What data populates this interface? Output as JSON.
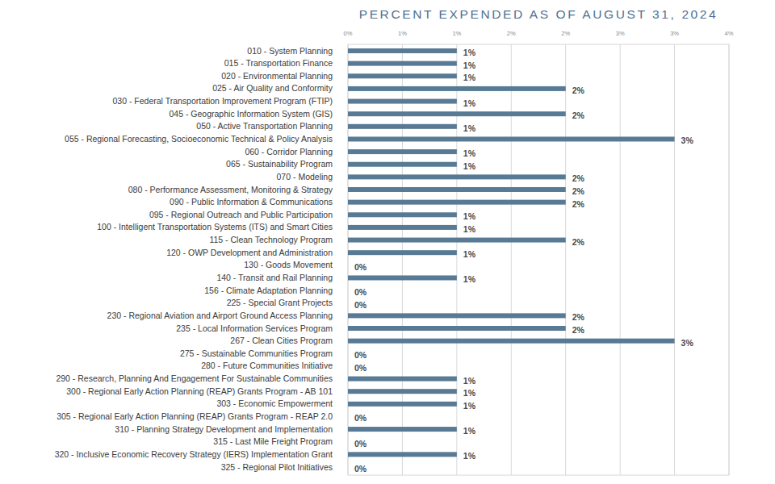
{
  "chart_data": {
    "type": "bar",
    "orientation": "horizontal",
    "title": "PERCENT EXPENDED AS OF AUGUST 31, 2024",
    "categories": [
      "010 - System Planning",
      "015 - Transportation Finance",
      "020 - Environmental Planning",
      "025 - Air Quality and Conformity",
      "030 - Federal Transportation Improvement Program (FTIP)",
      "045 - Geographic Information System (GIS)",
      "050 - Active Transportation Planning",
      "055 - Regional Forecasting, Socioeconomic Technical & Policy Analysis",
      "060 - Corridor Planning",
      "065 - Sustainability Program",
      "070 - Modeling",
      "080 - Performance Assessment, Monitoring & Strategy",
      "090 - Public Information & Communications",
      "095 - Regional Outreach and Public Participation",
      "100 - Intelligent Transportation Systems (ITS) and Smart Cities",
      "115 - Clean Technology Program",
      "120 - OWP Development and Administration",
      "130 - Goods Movement",
      "140 - Transit and Rail Planning",
      "156 - Climate Adaptation Planning",
      "225 - Special Grant Projects",
      "230 - Regional Aviation and Airport Ground Access Planning",
      "235 - Local Information Services Program",
      "267 - Clean Cities Program",
      "275 - Sustainable Communities Program",
      "280 - Future Communities Initiative",
      "290 - Research, Planning And Engagement For Sustainable Communities",
      "300 - Regional Early Action Planning (REAP) Grants Program - AB 101",
      "303 - Economic Empowerment",
      "305 - Regional Early Action Planning (REAP) Grants Program - REAP 2.0",
      "310 - Planning Strategy Development and Implementation",
      "315 - Last Mile Freight Program",
      "320 - Inclusive Economic Recovery Strategy (IERS) Implementation Grant",
      "325 - Regional Pilot Initiatives"
    ],
    "values": [
      1,
      1,
      1,
      2,
      1,
      2,
      1,
      3,
      1,
      1,
      2,
      2,
      2,
      1,
      1,
      2,
      1,
      0,
      1,
      0,
      0,
      2,
      2,
      3,
      0,
      0,
      1,
      1,
      1,
      0,
      1,
      0,
      1,
      0
    ],
    "value_labels": [
      "1%",
      "1%",
      "1%",
      "2%",
      "1%",
      "2%",
      "1%",
      "3%",
      "1%",
      "1%",
      "2%",
      "2%",
      "2%",
      "1%",
      "1%",
      "2%",
      "1%",
      "0%",
      "1%",
      "0%",
      "0%",
      "2%",
      "2%",
      "3%",
      "0%",
      "0%",
      "1%",
      "1%",
      "1%",
      "0%",
      "1%",
      "0%",
      "1%",
      "0%"
    ],
    "color": "#587a94",
    "xlim": [
      0,
      3.5
    ],
    "xticks": [
      {
        "value": 0,
        "label": "0%"
      },
      {
        "value": 0.5,
        "label": "1%"
      },
      {
        "value": 1,
        "label": "1%"
      },
      {
        "value": 1.5,
        "label": "2%"
      },
      {
        "value": 2,
        "label": "2%"
      },
      {
        "value": 2.5,
        "label": "3%"
      },
      {
        "value": 3,
        "label": "3%"
      },
      {
        "value": 3.5,
        "label": "4%"
      }
    ],
    "grid": true,
    "data_labels": true
  }
}
